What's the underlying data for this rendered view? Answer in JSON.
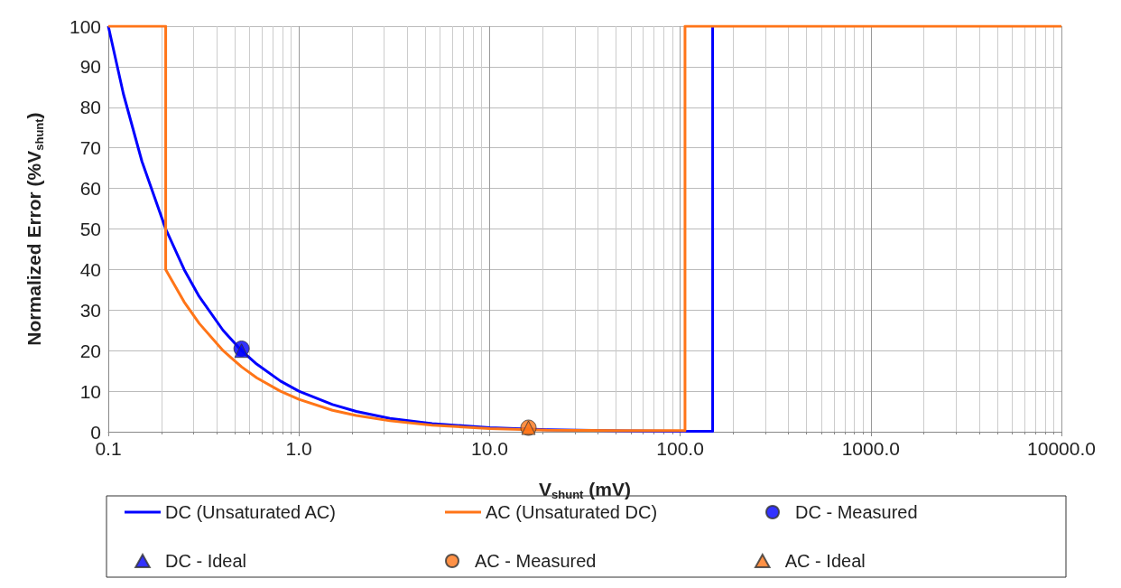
{
  "chart_data": {
    "type": "line",
    "xlabel": "V$_{shunt}$ (mV)",
    "ylabel": "Normalized Error (%V$_{shunt}$)",
    "log": "x",
    "xlim": [
      0.1,
      10000
    ],
    "xticks": [
      {
        "value": 0.1,
        "label": "0.1"
      },
      {
        "value": 1,
        "label": "1.0"
      },
      {
        "value": 10,
        "label": "10.0"
      },
      {
        "value": 100,
        "label": "100.0"
      },
      {
        "value": 1000,
        "label": "1000.0"
      },
      {
        "value": 10000,
        "label": "10000.0"
      }
    ],
    "ylim": [
      0,
      100
    ],
    "yticks": [
      0,
      10,
      20,
      30,
      40,
      50,
      60,
      70,
      80,
      90,
      100
    ],
    "grid": true,
    "legend": "bottom",
    "line_style": "solid",
    "series": [
      {
        "name": "DC (Unsaturated AC)",
        "color": "#0000ff",
        "marker": "none",
        "x": [
          0.1,
          0.12,
          0.15,
          0.2,
          0.25,
          0.3,
          0.4,
          0.5,
          0.6,
          0.8,
          1,
          1.5,
          2,
          3,
          5,
          10,
          20,
          50,
          100,
          148,
          148
        ],
        "values": [
          100,
          83.3,
          66.7,
          50,
          40,
          33.3,
          25,
          20,
          16.7,
          12.5,
          10,
          6.7,
          5,
          3.3,
          2,
          1,
          0.5,
          0.2,
          0.1,
          0.1,
          100
        ]
      },
      {
        "name": "AC (Unsaturated DC)",
        "color": "#ff7518",
        "marker": "none",
        "x": [
          0.1,
          0.2,
          0.2,
          0.25,
          0.3,
          0.4,
          0.5,
          0.6,
          0.8,
          1,
          1.5,
          2,
          3,
          5,
          10,
          20,
          50,
          106,
          106,
          10000
        ],
        "values": [
          100,
          100,
          40,
          32,
          26.7,
          20,
          16,
          13.3,
          10,
          8,
          5.3,
          4,
          2.7,
          1.6,
          0.8,
          0.4,
          0.3,
          0.3,
          100,
          100
        ]
      },
      {
        "name": "DC - Measured",
        "type": "scatter",
        "color": "#0000ff",
        "marker": "circle",
        "x": [
          0.5
        ],
        "values": [
          20.5
        ]
      },
      {
        "name": "DC - Ideal",
        "type": "scatter",
        "color": "#0000ff",
        "marker": "triangle",
        "x": [
          0.5
        ],
        "values": [
          20
        ]
      },
      {
        "name": "AC - Measured",
        "type": "scatter",
        "color": "#ff7518",
        "marker": "circle",
        "x": [
          16
        ],
        "values": [
          1
        ]
      },
      {
        "name": "AC - Ideal",
        "type": "scatter",
        "color": "#ff7518",
        "marker": "triangle",
        "x": [
          16
        ],
        "values": [
          1
        ]
      }
    ]
  }
}
